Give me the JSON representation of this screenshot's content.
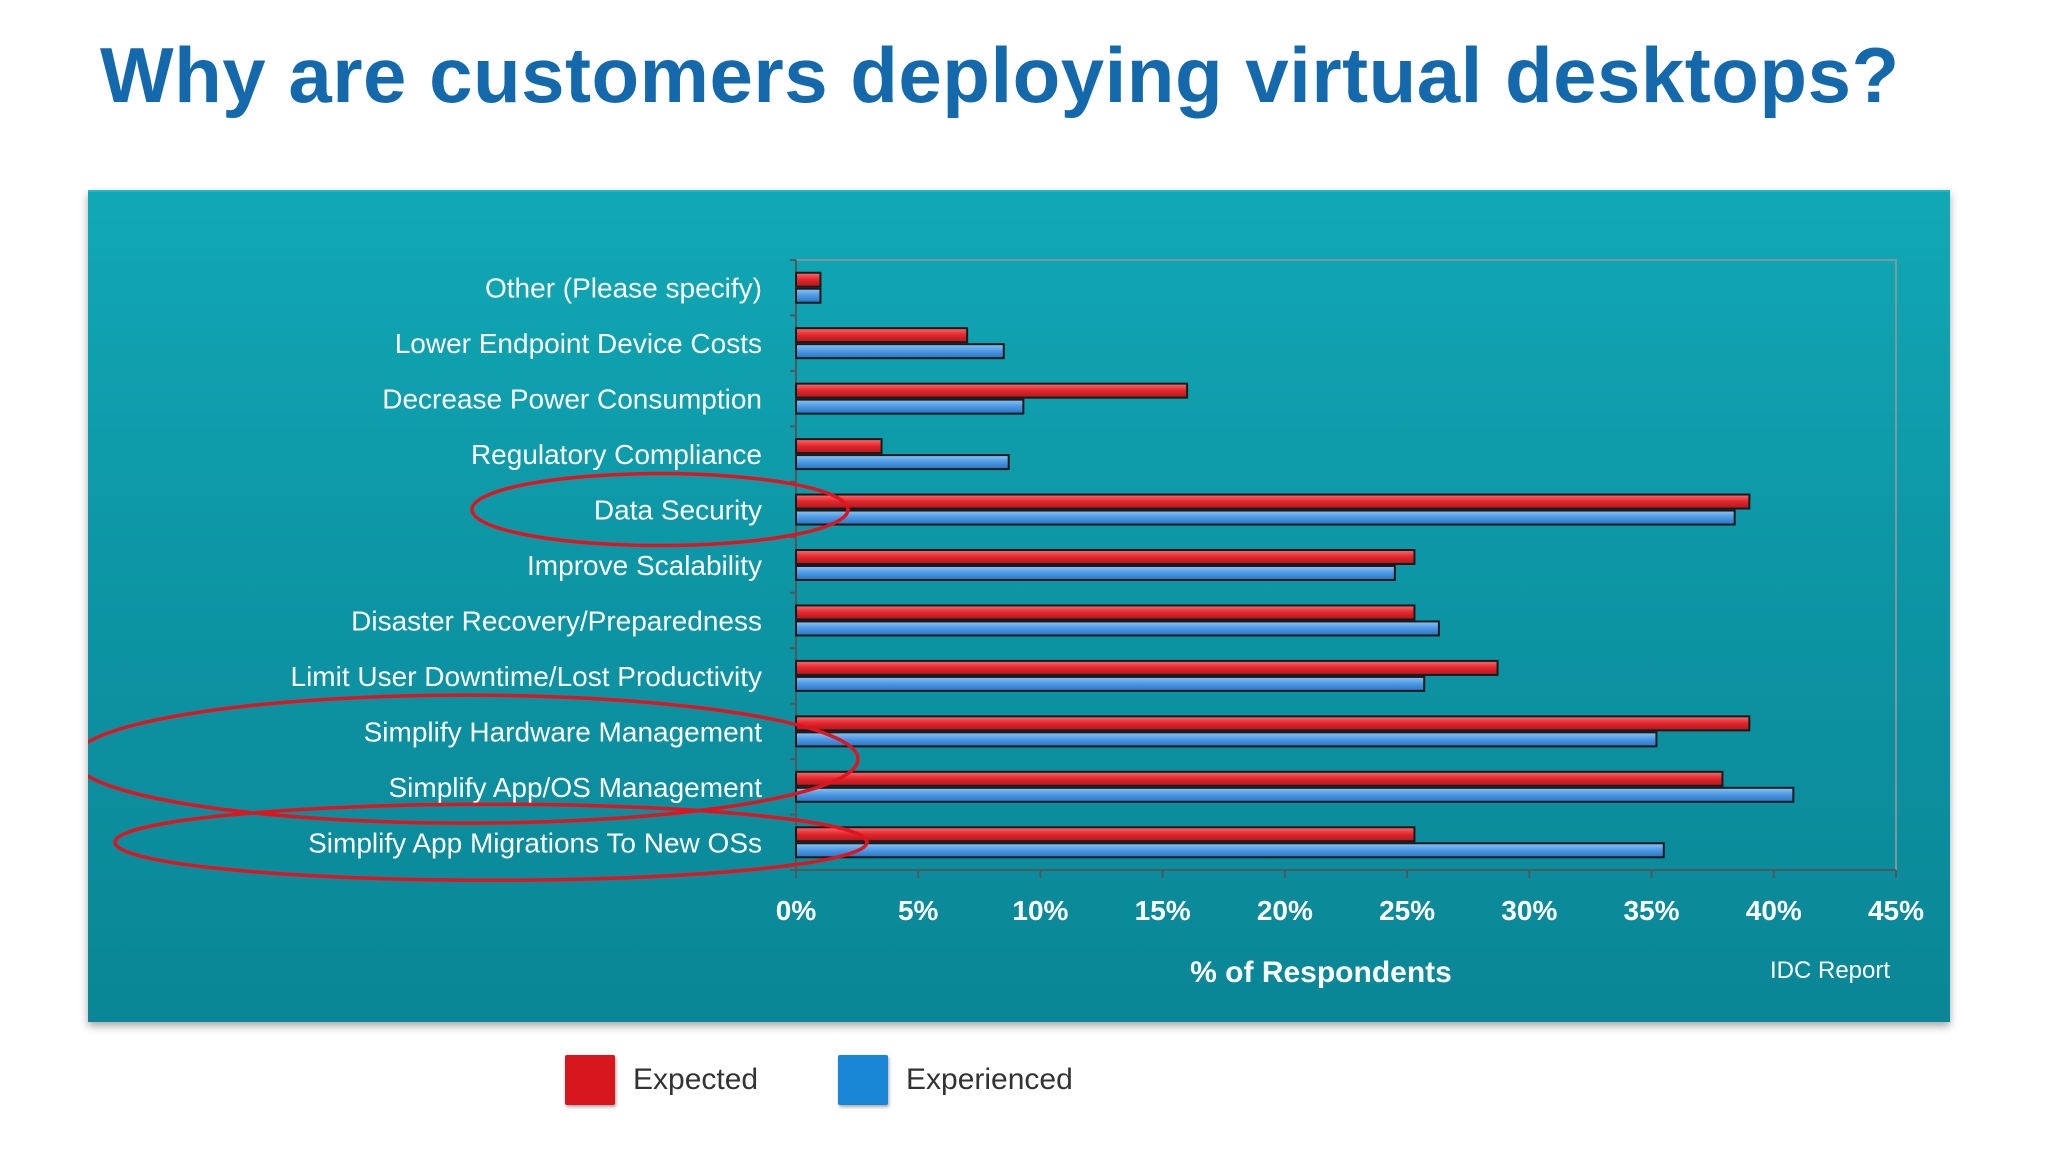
{
  "slide": {
    "title": "Why are customers deploying virtual desktops?"
  },
  "chart_data": {
    "type": "bar",
    "orientation": "horizontal",
    "categories": [
      "Other (Please specify)",
      "Lower Endpoint Device Costs",
      "Decrease Power Consumption",
      "Regulatory Compliance",
      "Data Security",
      "Improve Scalability",
      "Disaster Recovery/Preparedness",
      "Limit User Downtime/Lost Productivity",
      "Simplify Hardware Management",
      "Simplify App/OS Management",
      "Simplify App Migrations To New OSs"
    ],
    "series": [
      {
        "name": "Expected",
        "color": "#e0262b",
        "values": [
          1,
          7,
          16,
          3.5,
          39,
          25.3,
          25.3,
          28.7,
          39,
          37.9,
          25.3
        ]
      },
      {
        "name": "Experienced",
        "color": "#3d8fe0",
        "values": [
          1,
          8.5,
          9.3,
          8.7,
          38.4,
          24.5,
          26.3,
          25.7,
          35.2,
          40.8,
          35.5
        ]
      }
    ],
    "xlabel": "% of Respondents",
    "ylabel": "",
    "xlim": [
      0,
      45
    ],
    "xticks": [
      "0%",
      "5%",
      "10%",
      "15%",
      "20%",
      "25%",
      "30%",
      "35%",
      "40%",
      "45%"
    ],
    "xtick_values": [
      0,
      5,
      10,
      15,
      20,
      25,
      30,
      35,
      40,
      45
    ],
    "source_note": "IDC Report",
    "highlighted_categories": [
      "Data Security",
      "Simplify Hardware Management",
      "Simplify App/OS Management",
      "Simplify App Migrations To New OSs"
    ],
    "highlight_color": "#e0141e",
    "grid": false,
    "legend_position": "bottom"
  },
  "legend": {
    "expected_label": "Expected",
    "experienced_label": "Experienced",
    "expected_color": "#d8161d",
    "experienced_color": "#1a86d6"
  }
}
